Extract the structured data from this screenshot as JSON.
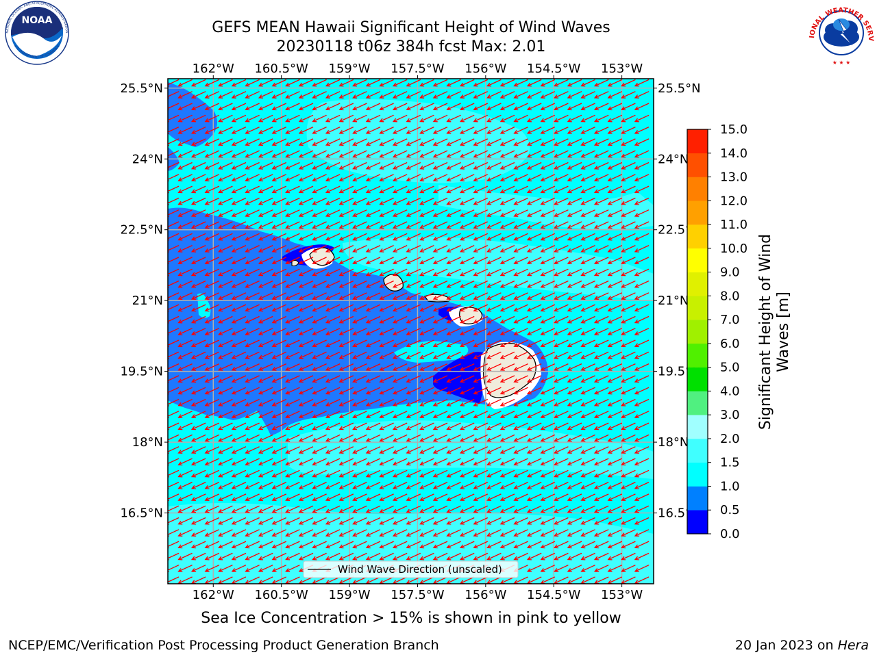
{
  "title_line1": "GEFS MEAN Hawaii Significant Height of Wind Waves",
  "title_line2": "20230118 t06z 384h fcst   Max: 2.01",
  "caption": "Sea Ice Concentration > 15% is shown in pink to yellow",
  "footer_left": "NCEP/EMC/Verification Post Processing Product Generation Branch",
  "footer_right_date": "20 Jan 2023 on ",
  "footer_right_host": "Hera",
  "legend_label": "Wind Wave Direction (unscaled)",
  "logos": {
    "noaa_text": "NOAA",
    "noaa_ring": "NATIONAL OCEANIC AND ATMOSPHERIC ADMINISTRATION",
    "noaa_bottom": "U.S. DEPARTMENT OF COMMERCE",
    "nws_ring": "NATIONAL WEATHER SERVICE"
  },
  "map": {
    "lon_range": [
      -163.0,
      -152.3
    ],
    "lat_range": [
      15.0,
      25.7
    ],
    "lon_ticks": [
      -162,
      -160.5,
      -159,
      -157.5,
      -156,
      -154.5,
      -153
    ],
    "lon_tick_labels": [
      "162°W",
      "160.5°W",
      "159°W",
      "157.5°W",
      "156°W",
      "154.5°W",
      "153°W"
    ],
    "lat_ticks": [
      25.5,
      24,
      22.5,
      21,
      19.5,
      18,
      16.5
    ],
    "lat_tick_labels": [
      "25.5°N",
      "24°N",
      "22.5°N",
      "21°N",
      "19.5°N",
      "18°N",
      "16.5°N"
    ],
    "arrow_direction_deg": 245,
    "colors": {
      "ocean_default": "#00ffff",
      "land": "#f0ecdc",
      "arrow": "#ff0000",
      "gridline": "#b0b0b0"
    }
  },
  "colorbar": {
    "label": "Significant Height of Wind Waves [m]",
    "label_line1": "Significant Height of Wind",
    "label_line2": "Waves [m]",
    "levels": [
      0.0,
      0.5,
      1.0,
      1.5,
      2.0,
      3.0,
      4.0,
      5.0,
      6.0,
      7.0,
      8.0,
      9.0,
      10.0,
      11.0,
      12.0,
      13.0,
      14.0,
      15.0
    ],
    "level_labels": [
      "0.0",
      "0.5",
      "1.0",
      "1.5",
      "2.0",
      "3.0",
      "4.0",
      "5.0",
      "6.0",
      "7.0",
      "8.0",
      "9.0",
      "10.0",
      "11.0",
      "12.0",
      "13.0",
      "14.0",
      "15.0"
    ],
    "colors": [
      "#0000ff",
      "#0080ff",
      "#00ffff",
      "#40ffff",
      "#a0ffff",
      "#50f080",
      "#00e000",
      "#50f000",
      "#a0f000",
      "#c8f000",
      "#e0f000",
      "#ffff00",
      "#ffd000",
      "#ffa000",
      "#ff8000",
      "#ff5000",
      "#ff2000"
    ]
  }
}
